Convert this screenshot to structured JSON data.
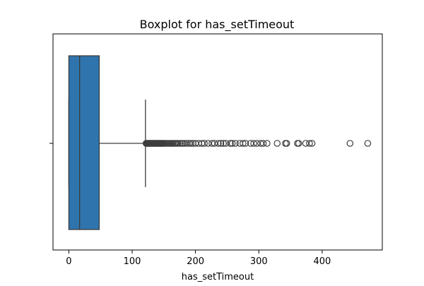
{
  "chart_data": {
    "type": "boxplot",
    "title": "Boxplot for has_setTimeout",
    "xlabel": "has_setTimeout",
    "ylabel": "",
    "xlim": [
      -25,
      495
    ],
    "x_ticks": [
      0,
      100,
      200,
      300,
      400
    ],
    "box": {
      "color": "#2f74ad",
      "whisker_low": 0,
      "q1": 0,
      "median": 17,
      "q3": 48,
      "whisker_high": 121
    },
    "outliers": [
      122,
      123,
      124,
      125,
      126,
      127,
      128,
      129,
      130,
      131,
      132,
      133,
      134,
      135,
      136,
      137,
      138,
      139,
      140,
      141,
      142,
      143,
      144,
      145,
      146,
      147,
      148,
      149,
      150,
      152,
      154,
      156,
      158,
      160,
      162,
      164,
      166,
      168,
      170,
      172,
      175,
      178,
      180,
      183,
      186,
      190,
      193,
      196,
      200,
      205,
      210,
      214,
      220,
      226,
      230,
      236,
      240,
      244,
      248,
      255,
      258,
      263,
      270,
      275,
      279,
      287,
      292,
      297,
      303,
      307,
      313,
      329,
      342,
      344,
      361,
      363,
      374,
      380,
      384,
      444,
      472
    ],
    "grid": false,
    "legend": "none"
  }
}
